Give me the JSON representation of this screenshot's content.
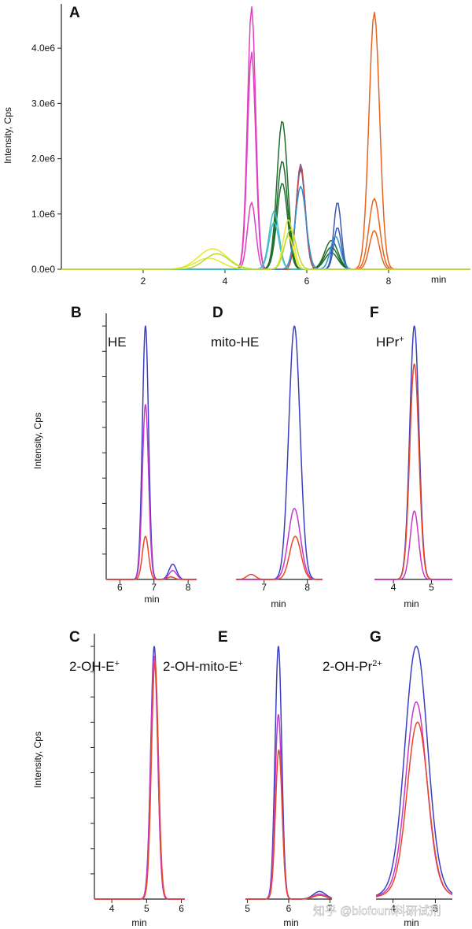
{
  "watermark": "知乎 @biofount科研试剂",
  "chart_data": [
    {
      "id": "A",
      "type": "line",
      "panel_letter": "A",
      "xlabel": "min",
      "ylabel": "Intensity, Cps",
      "xlim": [
        0,
        10
      ],
      "ylim": [
        0,
        4800000
      ],
      "xticks": [
        2,
        4,
        6,
        8
      ],
      "xtick_labels": [
        "2",
        "4",
        "6",
        "8"
      ],
      "yticks": [
        0,
        1000000,
        2000000,
        3000000,
        4000000
      ],
      "ytick_labels": [
        "0.0e0",
        "1.0e6",
        "2.0e6",
        "3.0e6",
        "4.0e6"
      ],
      "grid": false,
      "series": [
        {
          "color": "#e040c0",
          "peaks": [
            [
              4.65,
              4750000,
              0.1
            ]
          ]
        },
        {
          "color": "#e040c0",
          "peaks": [
            [
              4.65,
              3930000,
              0.1
            ]
          ]
        },
        {
          "color": "#e040c0",
          "peaks": [
            [
              4.65,
              1210000,
              0.1
            ]
          ]
        },
        {
          "color": "#e8641e",
          "peaks": [
            [
              7.65,
              4650000,
              0.13
            ]
          ]
        },
        {
          "color": "#e8641e",
          "peaks": [
            [
              7.65,
              1280000,
              0.13
            ]
          ]
        },
        {
          "color": "#e8641e",
          "peaks": [
            [
              7.65,
              700000,
              0.12
            ]
          ]
        },
        {
          "color": "#1f6e2c",
          "peaks": [
            [
              5.4,
              2690000,
              0.13
            ],
            [
              6.6,
              520000,
              0.16
            ]
          ]
        },
        {
          "color": "#1f6e2c",
          "peaks": [
            [
              5.4,
              1960000,
              0.13
            ],
            [
              6.6,
              400000,
              0.16
            ]
          ]
        },
        {
          "color": "#1f6e2c",
          "peaks": [
            [
              5.4,
              1560000,
              0.13
            ],
            [
              6.6,
              300000,
              0.16
            ]
          ]
        },
        {
          "color": "#3a5ab0",
          "peaks": [
            [
              5.85,
              1900000,
              0.11
            ],
            [
              6.75,
              1220000,
              0.09
            ]
          ]
        },
        {
          "color": "#3a5ab0",
          "peaks": [
            [
              5.85,
              1820000,
              0.11
            ],
            [
              6.75,
              760000,
              0.09
            ]
          ]
        },
        {
          "color": "#c0504d",
          "peaks": [
            [
              5.85,
              1880000,
              0.11
            ]
          ]
        },
        {
          "color": "#2f8fd0",
          "peaks": [
            [
              5.85,
              1500000,
              0.13
            ],
            [
              6.7,
              600000,
              0.12
            ]
          ]
        },
        {
          "color": "#3fbfc9",
          "peaks": [
            [
              5.2,
              1050000,
              0.12
            ]
          ]
        },
        {
          "color": "#3fbfc9",
          "peaks": [
            [
              5.2,
              850000,
              0.12
            ]
          ]
        },
        {
          "color": "#e6e830",
          "peaks": [
            [
              3.7,
              370000,
              0.35
            ],
            [
              5.55,
              900000,
              0.12
            ]
          ]
        },
        {
          "color": "#e6e830",
          "peaks": [
            [
              3.6,
              200000,
              0.32
            ],
            [
              5.55,
              600000,
              0.12
            ]
          ]
        },
        {
          "color": "#b7d93a",
          "peaks": [
            [
              3.8,
              280000,
              0.3
            ],
            [
              5.6,
              720000,
              0.14
            ]
          ]
        }
      ]
    },
    {
      "id": "B",
      "type": "line",
      "panel_letter": "B",
      "compound": "HE",
      "xlabel": "min",
      "ylabel": "Intensity, Cps",
      "show_ylabel": true,
      "xlim": [
        5.6,
        8.25
      ],
      "ylim": [
        0,
        1.05
      ],
      "xticks": [
        6,
        7,
        8
      ],
      "xtick_labels": [
        "6",
        "7",
        "8"
      ],
      "yticks": [
        0.1,
        0.2,
        0.3,
        0.4,
        0.5,
        0.6,
        0.7,
        0.8,
        0.9,
        1.0
      ],
      "series": [
        {
          "color": "#3b3fc0",
          "peaks": [
            [
              6.75,
              1.0,
              0.09
            ],
            [
              7.55,
              0.06,
              0.11
            ]
          ]
        },
        {
          "color": "#c838c8",
          "peaks": [
            [
              6.75,
              0.69,
              0.09
            ],
            [
              7.55,
              0.035,
              0.11
            ]
          ]
        },
        {
          "color": "#e84828",
          "peaks": [
            [
              6.75,
              0.17,
              0.09
            ],
            [
              7.5,
              0.01,
              0.1
            ]
          ]
        }
      ]
    },
    {
      "id": "D",
      "type": "line",
      "panel_letter": "D",
      "compound": "mito-HE",
      "xlabel": "min",
      "ylabel": "",
      "show_ylabel": false,
      "xlim": [
        6.35,
        8.35
      ],
      "ylim": [
        0,
        1.05
      ],
      "xticks": [
        7,
        8
      ],
      "xtick_labels": [
        "7",
        "8"
      ],
      "yticks": [],
      "series": [
        {
          "color": "#3b3fc0",
          "peaks": [
            [
              7.7,
              1.0,
              0.13
            ]
          ]
        },
        {
          "color": "#c838c8",
          "peaks": [
            [
              7.7,
              0.28,
              0.14
            ]
          ]
        },
        {
          "color": "#e84828",
          "peaks": [
            [
              7.72,
              0.17,
              0.13
            ],
            [
              6.7,
              0.02,
              0.1
            ]
          ]
        }
      ]
    },
    {
      "id": "F",
      "type": "line",
      "panel_letter": "F",
      "compound": "HPr+",
      "xlabel": "min",
      "ylabel": "",
      "show_ylabel": false,
      "xlim": [
        3.5,
        5.55
      ],
      "ylim": [
        0,
        1.05
      ],
      "xticks": [
        4,
        5
      ],
      "xtick_labels": [
        "4",
        "5"
      ],
      "yticks": [],
      "series": [
        {
          "color": "#3b3fc0",
          "peaks": [
            [
              4.55,
              1.0,
              0.12
            ]
          ]
        },
        {
          "color": "#e84828",
          "peaks": [
            [
              4.55,
              0.85,
              0.12
            ]
          ]
        },
        {
          "color": "#c838c8",
          "peaks": [
            [
              4.55,
              0.27,
              0.11
            ]
          ]
        }
      ]
    },
    {
      "id": "C",
      "type": "line",
      "panel_letter": "C",
      "compound": "2-OH-E+",
      "xlabel": "min",
      "ylabel": "Intensity, Cps",
      "show_ylabel": true,
      "xlim": [
        3.5,
        6.1
      ],
      "ylim": [
        0,
        1.05
      ],
      "xticks": [
        4,
        5,
        6
      ],
      "xtick_labels": [
        "4",
        "5",
        "6"
      ],
      "yticks": [
        0.1,
        0.2,
        0.3,
        0.4,
        0.5,
        0.6,
        0.7,
        0.8,
        0.9,
        1.0
      ],
      "series": [
        {
          "color": "#3b3fc0",
          "peaks": [
            [
              5.22,
              1.0,
              0.1
            ]
          ]
        },
        {
          "color": "#c838c8",
          "peaks": [
            [
              5.22,
              0.96,
              0.1
            ]
          ]
        },
        {
          "color": "#e84828",
          "peaks": [
            [
              5.24,
              0.94,
              0.1
            ]
          ]
        }
      ]
    },
    {
      "id": "E",
      "type": "line",
      "panel_letter": "E",
      "compound": "2-OH-mito-E+",
      "xlabel": "min",
      "ylabel": "",
      "show_ylabel": false,
      "xlim": [
        4.95,
        7.05
      ],
      "ylim": [
        0,
        1.05
      ],
      "xticks": [
        5,
        6,
        7
      ],
      "xtick_labels": [
        "5",
        "6",
        "7"
      ],
      "yticks": [],
      "series": [
        {
          "color": "#3b3fc0",
          "peaks": [
            [
              5.75,
              1.0,
              0.08
            ],
            [
              6.75,
              0.03,
              0.15
            ]
          ]
        },
        {
          "color": "#c838c8",
          "peaks": [
            [
              5.75,
              0.73,
              0.08
            ],
            [
              6.75,
              0.02,
              0.15
            ]
          ]
        },
        {
          "color": "#e84828",
          "peaks": [
            [
              5.76,
              0.59,
              0.08
            ],
            [
              6.75,
              0.015,
              0.15
            ]
          ]
        }
      ]
    },
    {
      "id": "G",
      "type": "line",
      "panel_letter": "G",
      "compound": "2-OH-Pr2+",
      "xlabel": "min",
      "ylabel": "",
      "show_ylabel": false,
      "xlim": [
        3.6,
        5.4
      ],
      "ylim": [
        0,
        1.05
      ],
      "xticks": [
        4,
        5
      ],
      "xtick_labels": [
        "4",
        "5"
      ],
      "yticks": [],
      "series": [
        {
          "color": "#3b3fc0",
          "baseline": 0.08,
          "peaks": [
            [
              4.55,
              0.92,
              0.26
            ]
          ]
        },
        {
          "color": "#c838c8",
          "baseline": 0.07,
          "peaks": [
            [
              4.55,
              0.71,
              0.24
            ]
          ]
        },
        {
          "color": "#e84828",
          "baseline": 0.06,
          "peaks": [
            [
              4.58,
              0.64,
              0.24
            ]
          ]
        }
      ]
    }
  ]
}
